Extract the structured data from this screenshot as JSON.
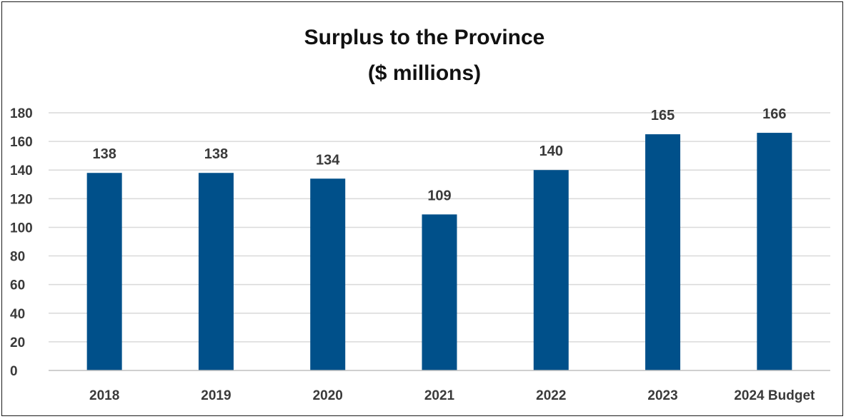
{
  "chart_data": {
    "type": "bar",
    "title": "Surplus to the Province",
    "subtitle": "($ millions)",
    "xlabel": "",
    "ylabel": "",
    "categories": [
      "2018",
      "2019",
      "2020",
      "2021",
      "2022",
      "2023",
      "2024 Budget"
    ],
    "values": [
      138,
      138,
      134,
      109,
      140,
      165,
      166
    ],
    "data_labels": [
      "138",
      "138",
      "134",
      "109",
      "140",
      "165",
      "166"
    ],
    "ylim": [
      0,
      180
    ],
    "yticks": [
      0,
      20,
      40,
      60,
      80,
      100,
      120,
      140,
      160,
      180
    ],
    "grid": true,
    "legend": "none",
    "bar_color": "#00508a"
  }
}
